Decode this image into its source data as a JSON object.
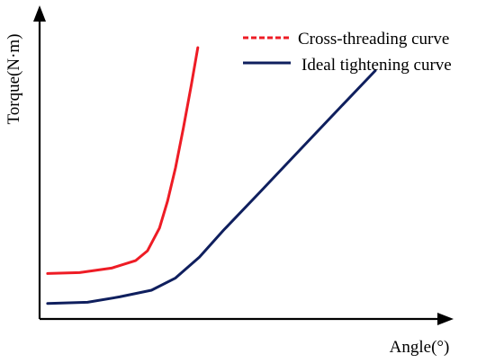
{
  "chart_data": {
    "type": "line",
    "title": "",
    "xlabel": "Angle(°)",
    "ylabel": "Torque(N·m)",
    "xlim": [
      0,
      100
    ],
    "ylim": [
      0,
      100
    ],
    "x_ticks_shown": false,
    "y_ticks_shown": false,
    "grid": false,
    "legend_position": "top-right",
    "series": [
      {
        "name": "Cross-threading curve",
        "color": "#ee1c25",
        "dash": "dashed",
        "points": [
          [
            2,
            15.2
          ],
          [
            10,
            15.5
          ],
          [
            18,
            17
          ],
          [
            24,
            19.5
          ],
          [
            27,
            22.8
          ],
          [
            30,
            30.4
          ],
          [
            32,
            39.3
          ],
          [
            34,
            50.5
          ],
          [
            36,
            63.9
          ],
          [
            38,
            78.4
          ],
          [
            39.6,
            90.7
          ]
        ]
      },
      {
        "name": "Ideal tightening curve",
        "color": "#0f1f5e",
        "dash": "solid",
        "points": [
          [
            2,
            5.2
          ],
          [
            12,
            5.6
          ],
          [
            20,
            7.4
          ],
          [
            28,
            9.6
          ],
          [
            34,
            13.7
          ],
          [
            40,
            20.7
          ],
          [
            46,
            29.6
          ],
          [
            55,
            42.2
          ],
          [
            65,
            56.3
          ],
          [
            75,
            70.4
          ],
          [
            84,
            83
          ]
        ]
      }
    ]
  }
}
